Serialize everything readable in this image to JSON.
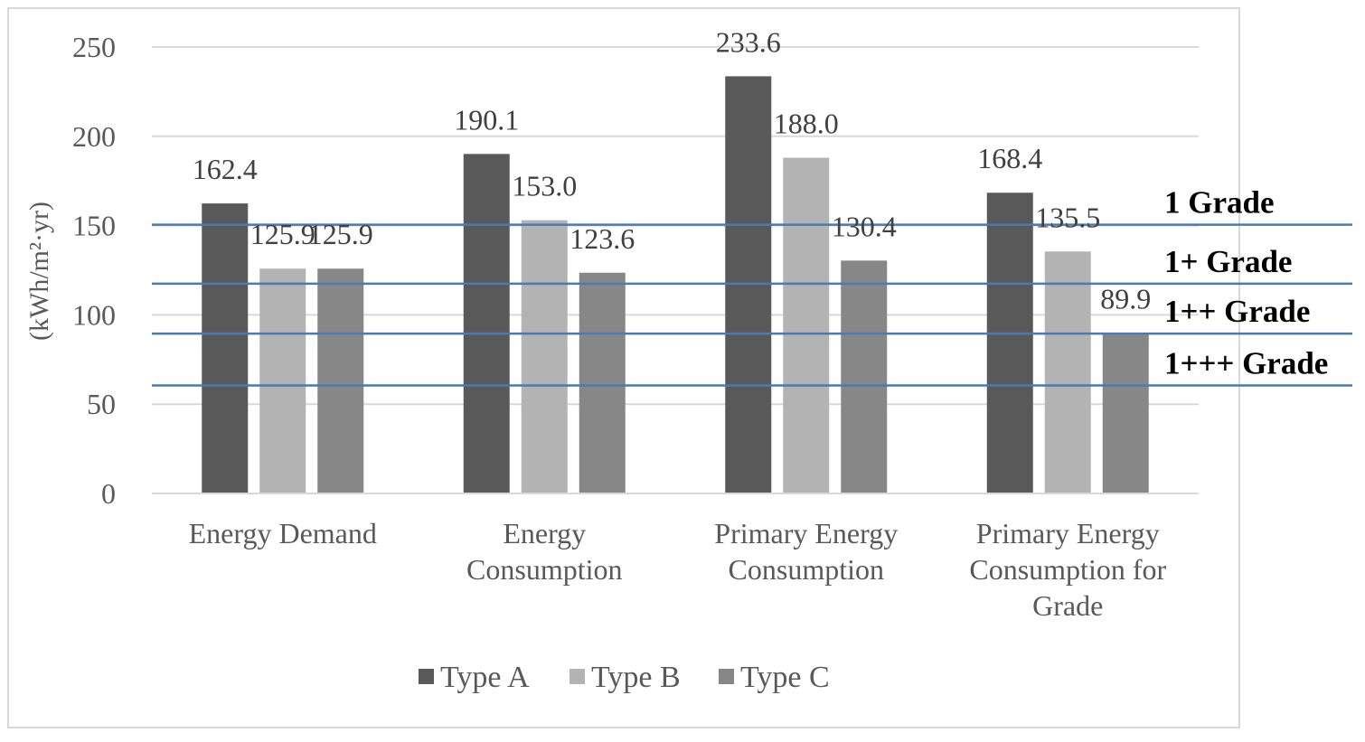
{
  "chart_data": {
    "type": "bar",
    "title": "",
    "xlabel": "",
    "ylabel": "(kWh/m²·yr)",
    "ylim": [
      0,
      250
    ],
    "yticks": [
      0,
      50,
      100,
      150,
      200,
      250
    ],
    "grid": true,
    "legend_position": "bottom",
    "categories": [
      [
        "Energy Demand"
      ],
      [
        "Energy",
        "Consumption"
      ],
      [
        "Primary Energy",
        "Consumption"
      ],
      [
        "Primary Energy",
        "Consumption for",
        "Grade"
      ]
    ],
    "series": [
      {
        "name": "Type A",
        "color": "#595959",
        "values": [
          162.4,
          190.1,
          233.6,
          168.4
        ],
        "labels": [
          "162.4",
          "190.1",
          "233.6",
          "168.4"
        ]
      },
      {
        "name": "Type B",
        "color": "#b3b3b3",
        "values": [
          125.9,
          153.0,
          188.0,
          135.5
        ],
        "labels": [
          "125.9",
          "153.0",
          "188.0",
          "135.5"
        ]
      },
      {
        "name": "Type C",
        "color": "#878787",
        "values": [
          125.9,
          123.6,
          130.4,
          89.9
        ],
        "labels": [
          "125.9",
          "123.6",
          "130.4",
          "89.9"
        ]
      }
    ],
    "reference_lines": [
      {
        "label": "1 Grade",
        "value": 150.5,
        "color": "#4a7ab5"
      },
      {
        "label": "1+ Grade",
        "value": 117.5,
        "color": "#4a7ab5"
      },
      {
        "label": "1++ Grade",
        "value": 89.5,
        "color": "#4a7ab5"
      },
      {
        "label": "1+++ Grade",
        "value": 60.5,
        "color": "#4a7ab5"
      }
    ]
  }
}
